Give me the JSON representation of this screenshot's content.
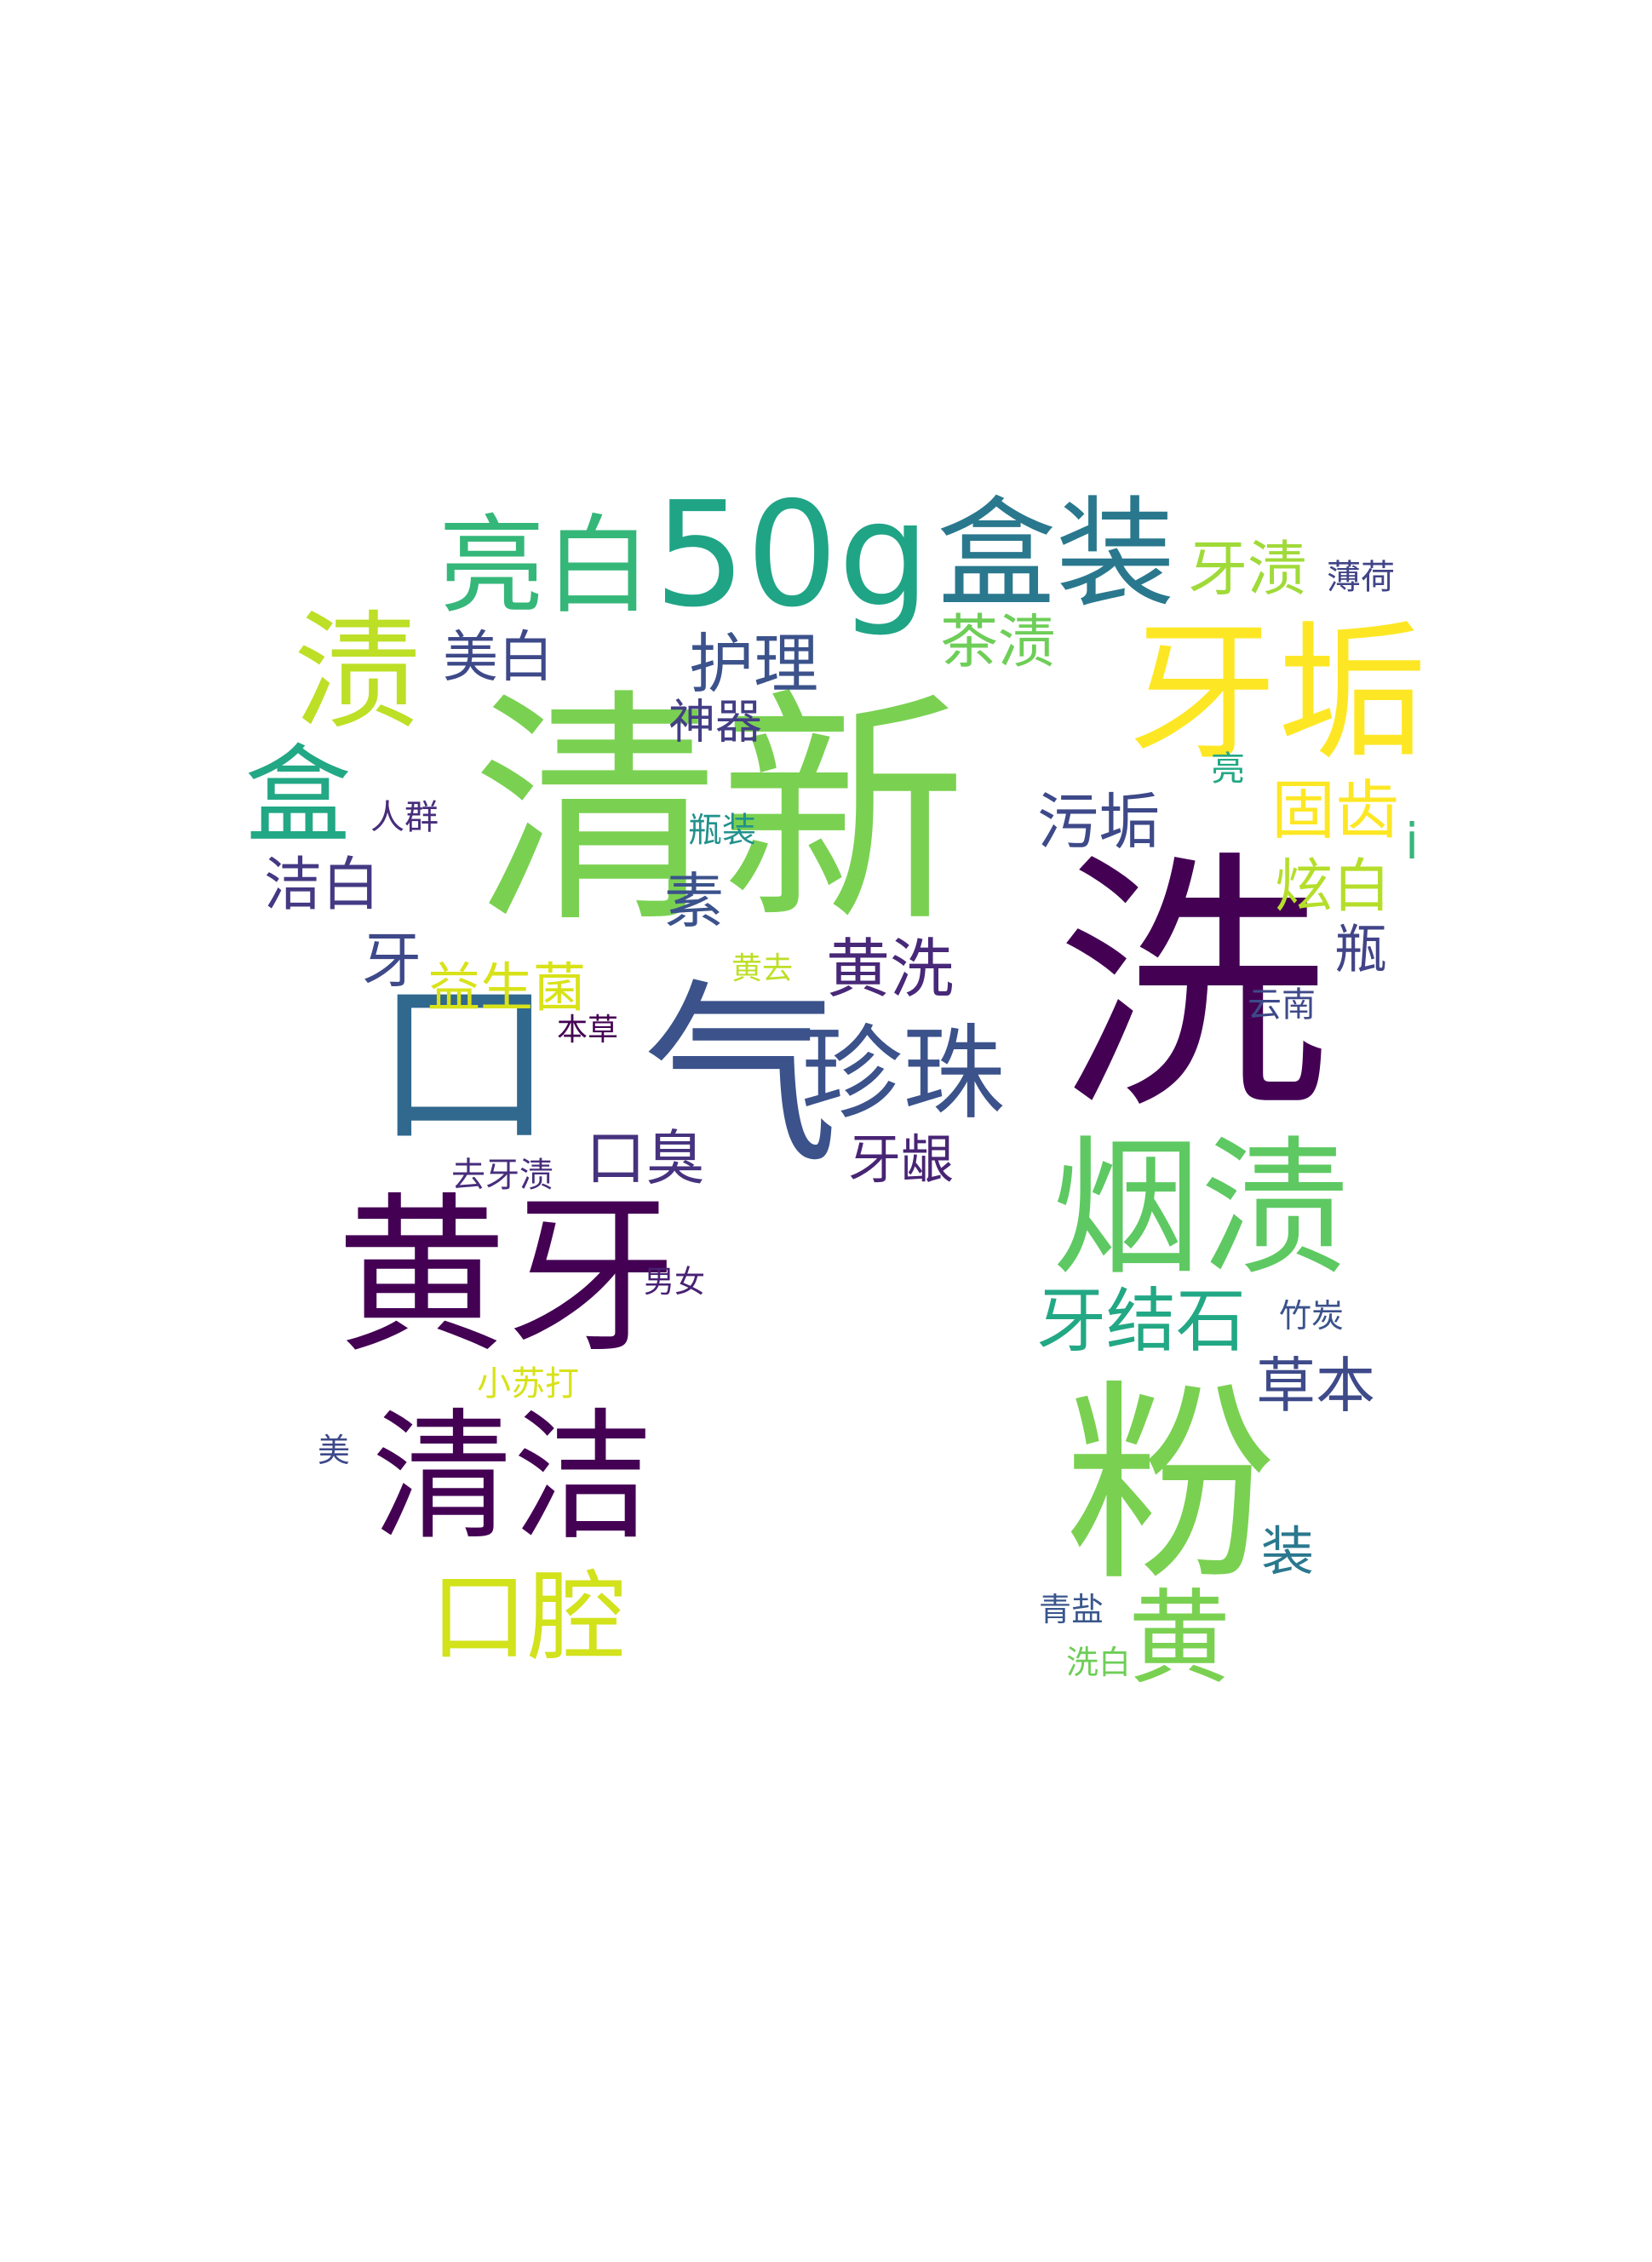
{
  "words": [
    {
      "text": "清新",
      "color": "#7ad151"
    },
    {
      "text": "洗",
      "color": "#440154"
    },
    {
      "text": "粉",
      "color": "#7ad151"
    },
    {
      "text": "黄牙",
      "color": "#440154"
    },
    {
      "text": "口",
      "color": "#31688e"
    },
    {
      "text": "气",
      "color": "#3b528b"
    },
    {
      "text": "牙垢",
      "color": "#fde725"
    },
    {
      "text": "烟渍",
      "color": "#5ec962"
    },
    {
      "text": "清洁",
      "color": "#440154"
    },
    {
      "text": "50g",
      "color": "#20a486"
    },
    {
      "text": "盒装",
      "color": "#2a788e"
    },
    {
      "text": "亮白",
      "color": "#35b779"
    },
    {
      "text": "渍",
      "color": "#bddf26"
    },
    {
      "text": "珍珠",
      "color": "#3b528b"
    },
    {
      "text": "口腔",
      "color": "#d2e21b"
    },
    {
      "text": "黄",
      "color": "#7ad151"
    },
    {
      "text": "盒",
      "color": "#22a884"
    },
    {
      "text": "牙结石",
      "color": "#22a884"
    },
    {
      "text": "护理",
      "color": "#3b528b"
    },
    {
      "text": "美白",
      "color": "#3e4989"
    },
    {
      "text": "茶渍",
      "color": "#6ece58"
    },
    {
      "text": "牙渍",
      "color": "#a0da39"
    },
    {
      "text": "固齿",
      "color": "#fde725"
    },
    {
      "text": "污垢",
      "color": "#3e4989"
    },
    {
      "text": "黄洗",
      "color": "#482878"
    },
    {
      "text": "炫白",
      "color": "#b5de2b"
    },
    {
      "text": "益生菌",
      "color": "#d8e219"
    },
    {
      "text": "洁白",
      "color": "#443983"
    },
    {
      "text": "口臭",
      "color": "#46327e"
    },
    {
      "text": "草本",
      "color": "#3e4a89"
    },
    {
      "text": "素",
      "color": "#3b528b"
    },
    {
      "text": "牙龈",
      "color": "#482475"
    },
    {
      "text": "瓶",
      "color": "#414487"
    },
    {
      "text": "牙",
      "color": "#3e4989"
    },
    {
      "text": "神器",
      "color": "#433e85"
    },
    {
      "text": "装",
      "color": "#2a788e"
    },
    {
      "text": "薄荷",
      "color": "#414487"
    },
    {
      "text": "人群",
      "color": "#472d7b"
    },
    {
      "text": "瓶装",
      "color": "#21918c"
    },
    {
      "text": "亮",
      "color": "#22a884"
    },
    {
      "text": "i",
      "color": "#35b779"
    },
    {
      "text": "云南",
      "color": "#3e4a89"
    },
    {
      "text": "黄去",
      "color": "#bddf26"
    },
    {
      "text": "本草",
      "color": "#440154"
    },
    {
      "text": "去牙渍",
      "color": "#472d7b"
    },
    {
      "text": "男女",
      "color": "#482173"
    },
    {
      "text": "竹炭",
      "color": "#3b528b"
    },
    {
      "text": "小苏打",
      "color": "#d8e219"
    },
    {
      "text": "美",
      "color": "#3e4989"
    },
    {
      "text": "青盐",
      "color": "#39568c"
    },
    {
      "text": "洗白",
      "color": "#6ece58"
    }
  ]
}
